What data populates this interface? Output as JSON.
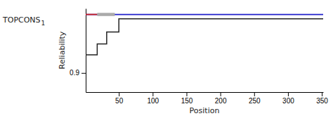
{
  "chart_data": {
    "type": "line",
    "xlabel": "Position",
    "ylabel": "Reliability",
    "annotations": [
      "TOPCONS",
      "1"
    ],
    "xlim": [
      1,
      352
    ],
    "ylim": [
      0.865,
      1.018
    ],
    "xticks": [
      50,
      100,
      150,
      200,
      250,
      300,
      350
    ],
    "yticks": [
      0.9
    ],
    "series": [
      {
        "color": "#2222cc",
        "x": [
          1,
          352
        ],
        "values": [
          1.007,
          1.007
        ]
      },
      {
        "color": "#cc2222",
        "x": [
          1,
          18
        ],
        "values": [
          1.007,
          1.007
        ]
      },
      {
        "color": "#aaaaaa",
        "x": [
          18,
          44
        ],
        "values": [
          1.007,
          1.007
        ]
      },
      {
        "color": "#222222",
        "x": [
          1,
          18,
          18,
          32,
          32,
          50,
          50,
          352
        ],
        "values": [
          0.933,
          0.933,
          0.953,
          0.953,
          0.975,
          0.975,
          0.999,
          0.999
        ]
      }
    ]
  }
}
